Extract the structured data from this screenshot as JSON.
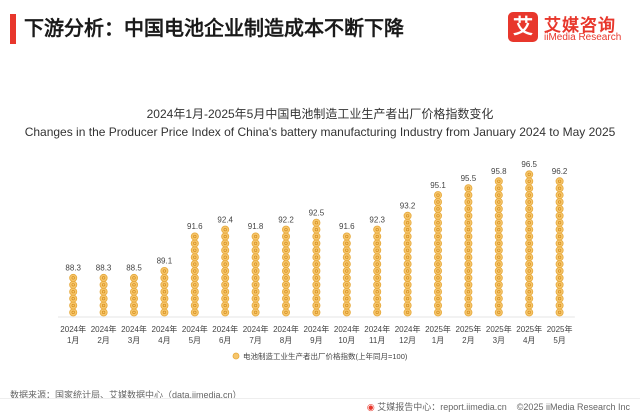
{
  "header": {
    "title": "下游分析：中国电池企业制造成本不断下降"
  },
  "logo": {
    "mark": "艾",
    "name_cn": "艾媒咨询",
    "name_en": "iiMedia Research"
  },
  "chart_data": {
    "type": "bar",
    "title": "2024年1月-2025年5月中国电池制造工业生产者出厂价格指数变化",
    "subtitle": "Changes in the Producer Price Index of China's battery manufacturing Industry from January 2024 to May 2025",
    "categories": [
      [
        "2024年",
        "1月"
      ],
      [
        "2024年",
        "2月"
      ],
      [
        "2024年",
        "3月"
      ],
      [
        "2024年",
        "4月"
      ],
      [
        "2024年",
        "5月"
      ],
      [
        "2024年",
        "6月"
      ],
      [
        "2024年",
        "7月"
      ],
      [
        "2024年",
        "8月"
      ],
      [
        "2024年",
        "9月"
      ],
      [
        "2024年",
        "10月"
      ],
      [
        "2024年",
        "11月"
      ],
      [
        "2024年",
        "12月"
      ],
      [
        "2025年",
        "1月"
      ],
      [
        "2025年",
        "2月"
      ],
      [
        "2025年",
        "3月"
      ],
      [
        "2025年",
        "4月"
      ],
      [
        "2025年",
        "5月"
      ]
    ],
    "series": [
      {
        "name": "电池制造工业生产者出厂价格指数(上年同月=100)",
        "values": [
          88.3,
          88.3,
          88.5,
          89.1,
          91.6,
          92.4,
          91.8,
          92.2,
          92.5,
          91.6,
          92.3,
          93.2,
          95.1,
          95.5,
          95.8,
          96.5,
          96.2
        ]
      }
    ],
    "ylim": [
      85,
      97
    ],
    "grid": false,
    "legend_position": "bottom",
    "colors": {
      "coin": "#f6c56b",
      "coin_edge": "#e6a93b",
      "coin_glyph": "#d38b17"
    }
  },
  "footer": {
    "source": "数据来源：国家统计局、艾媒数据中心（data.iimedia.cn）",
    "right_prefix": "艾媒报告中心：report.iimedia.cn",
    "copyright": "©2025  iiMedia Research  Inc"
  }
}
